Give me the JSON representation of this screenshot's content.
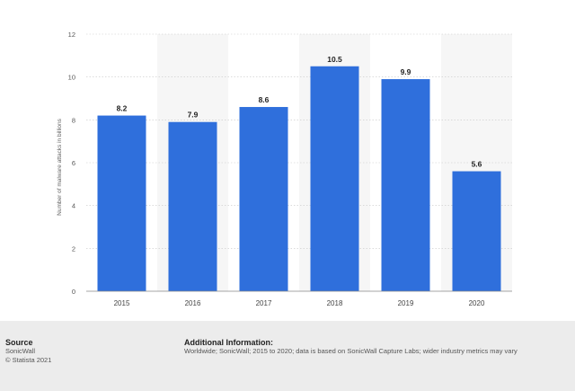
{
  "chart_data": {
    "type": "bar",
    "categories": [
      "2015",
      "2016",
      "2017",
      "2018",
      "2019",
      "2020"
    ],
    "values": [
      8.2,
      7.9,
      8.6,
      10.5,
      9.9,
      5.6
    ],
    "value_labels": [
      "8.2",
      "7.9",
      "8.6",
      "10.5",
      "9.9",
      "5.6"
    ],
    "title": "",
    "xlabel": "",
    "ylabel": "Number of malware attacks in billions",
    "ylim": [
      0,
      12
    ],
    "yticks": [
      0,
      2,
      4,
      6,
      8,
      10,
      12
    ],
    "grid": true,
    "bar_color": "#2f6fdc"
  },
  "source": {
    "title": "Source",
    "lines": [
      "SonicWall",
      "© Statista 2021"
    ]
  },
  "additional_info": {
    "title": "Additional Information:",
    "text": "Worldwide; SonicWall; 2015 to 2020; data is based on SonicWall Capture Labs; wider industry metrics may vary"
  }
}
